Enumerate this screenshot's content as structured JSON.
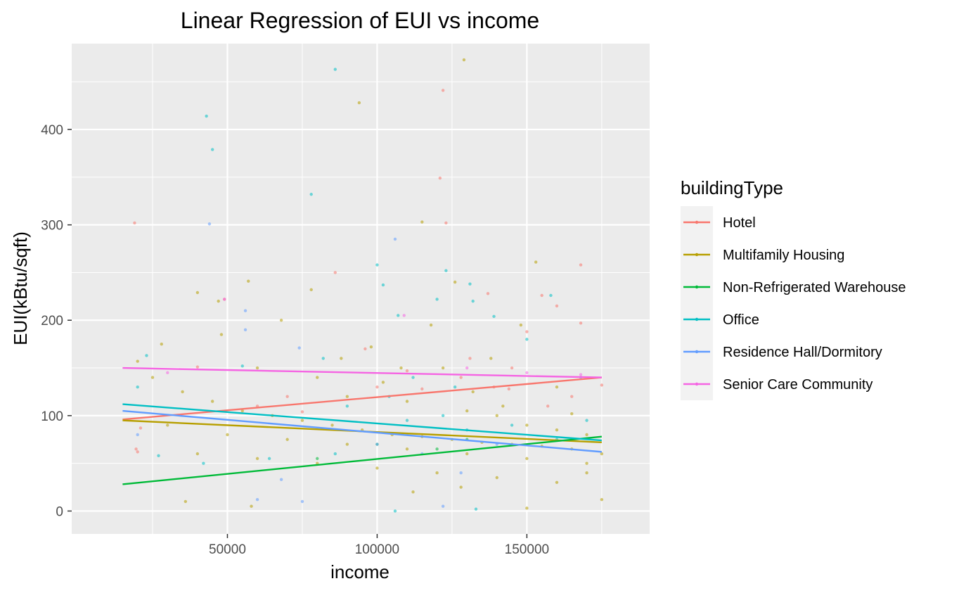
{
  "chart_data": {
    "type": "scatter",
    "title": "Linear Regression of EUI vs income",
    "xlabel": "income",
    "ylabel": "EUI(kBtu/sqft)",
    "xlim": [
      -2000,
      191000
    ],
    "ylim": [
      -24,
      490
    ],
    "x_ticks": [
      50000,
      100000,
      150000
    ],
    "y_ticks": [
      0,
      100,
      200,
      300,
      400
    ],
    "grid": true,
    "legend": {
      "title": "buildingType",
      "position": "right"
    },
    "series": [
      {
        "name": "Hotel",
        "color": "#F8766D",
        "fit": [
          [
            15000,
            96
          ],
          [
            175000,
            140
          ]
        ],
        "points": [
          [
            19000,
            302
          ],
          [
            19500,
            65
          ],
          [
            20000,
            62
          ],
          [
            21000,
            87
          ],
          [
            122000,
            441
          ],
          [
            121000,
            349
          ],
          [
            123000,
            302
          ],
          [
            168000,
            258
          ],
          [
            168000,
            197
          ],
          [
            160000,
            215
          ],
          [
            155000,
            226
          ],
          [
            150000,
            188
          ],
          [
            137000,
            228
          ],
          [
            139000,
            130
          ],
          [
            131000,
            160
          ],
          [
            145000,
            150
          ],
          [
            144000,
            128
          ],
          [
            110000,
            147
          ],
          [
            96000,
            170
          ],
          [
            86000,
            250
          ],
          [
            49000,
            222
          ],
          [
            40000,
            151
          ],
          [
            157000,
            110
          ],
          [
            165000,
            120
          ],
          [
            175000,
            132
          ],
          [
            70000,
            120
          ],
          [
            60000,
            110
          ],
          [
            100000,
            130
          ],
          [
            115000,
            128
          ],
          [
            128000,
            140
          ],
          [
            75000,
            104
          ]
        ]
      },
      {
        "name": "Multifamily Housing",
        "color": "#B79F00",
        "fit": [
          [
            15000,
            95
          ],
          [
            175000,
            72
          ]
        ],
        "points": [
          [
            129000,
            473
          ],
          [
            94000,
            428
          ],
          [
            115000,
            303
          ],
          [
            153000,
            261
          ],
          [
            57000,
            241
          ],
          [
            40000,
            229
          ],
          [
            78000,
            232
          ],
          [
            47000,
            220
          ],
          [
            126000,
            240
          ],
          [
            118000,
            195
          ],
          [
            98000,
            172
          ],
          [
            60000,
            150
          ],
          [
            80000,
            140
          ],
          [
            90000,
            120
          ],
          [
            110000,
            115
          ],
          [
            130000,
            105
          ],
          [
            140000,
            100
          ],
          [
            150000,
            90
          ],
          [
            160000,
            85
          ],
          [
            170000,
            80
          ],
          [
            35000,
            125
          ],
          [
            45000,
            115
          ],
          [
            55000,
            105
          ],
          [
            65000,
            100
          ],
          [
            75000,
            95
          ],
          [
            85000,
            90
          ],
          [
            95000,
            85
          ],
          [
            105000,
            80
          ],
          [
            115000,
            78
          ],
          [
            125000,
            75
          ],
          [
            135000,
            72
          ],
          [
            145000,
            70
          ],
          [
            155000,
            68
          ],
          [
            165000,
            65
          ],
          [
            175000,
            60
          ],
          [
            30000,
            90
          ],
          [
            50000,
            80
          ],
          [
            70000,
            75
          ],
          [
            90000,
            70
          ],
          [
            110000,
            65
          ],
          [
            130000,
            60
          ],
          [
            150000,
            55
          ],
          [
            170000,
            50
          ],
          [
            40000,
            60
          ],
          [
            60000,
            55
          ],
          [
            80000,
            50
          ],
          [
            100000,
            45
          ],
          [
            120000,
            40
          ],
          [
            140000,
            35
          ],
          [
            160000,
            30
          ],
          [
            36000,
            10
          ],
          [
            58000,
            5
          ],
          [
            150000,
            3
          ],
          [
            175000,
            12
          ],
          [
            112000,
            20
          ],
          [
            128000,
            25
          ],
          [
            102000,
            135
          ],
          [
            122000,
            150
          ],
          [
            132000,
            125
          ],
          [
            142000,
            110
          ],
          [
            25000,
            140
          ],
          [
            20000,
            157
          ],
          [
            28000,
            175
          ],
          [
            48000,
            185
          ],
          [
            68000,
            200
          ],
          [
            88000,
            160
          ],
          [
            108000,
            150
          ],
          [
            138000,
            160
          ],
          [
            148000,
            195
          ],
          [
            160000,
            130
          ],
          [
            165000,
            102
          ],
          [
            170000,
            40
          ]
        ]
      },
      {
        "name": "Non-Refrigerated Warehouse",
        "color": "#00BA38",
        "fit": [
          [
            15000,
            28
          ],
          [
            175000,
            78
          ]
        ],
        "points": [
          [
            100000,
            70
          ],
          [
            120000,
            65
          ],
          [
            130000,
            75
          ],
          [
            80000,
            55
          ]
        ]
      },
      {
        "name": "Office",
        "color": "#00BFC4",
        "fit": [
          [
            15000,
            112
          ],
          [
            175000,
            74
          ]
        ],
        "points": [
          [
            86000,
            463
          ],
          [
            43000,
            414
          ],
          [
            45000,
            379
          ],
          [
            78000,
            332
          ],
          [
            123000,
            252
          ],
          [
            100000,
            258
          ],
          [
            102000,
            237
          ],
          [
            131000,
            238
          ],
          [
            158000,
            226
          ],
          [
            150000,
            180
          ],
          [
            132000,
            220
          ],
          [
            139000,
            204
          ],
          [
            107000,
            205
          ],
          [
            120000,
            222
          ],
          [
            55000,
            152
          ],
          [
            82000,
            160
          ],
          [
            90000,
            110
          ],
          [
            110000,
            95
          ],
          [
            130000,
            85
          ],
          [
            145000,
            90
          ],
          [
            160000,
            75
          ],
          [
            170000,
            95
          ],
          [
            20000,
            130
          ],
          [
            23000,
            163
          ],
          [
            27000,
            58
          ],
          [
            42000,
            50
          ],
          [
            64000,
            55
          ],
          [
            106000,
            0
          ],
          [
            133000,
            2
          ],
          [
            86000,
            60
          ],
          [
            122000,
            100
          ],
          [
            126000,
            130
          ],
          [
            112000,
            140
          ],
          [
            104000,
            120
          ]
        ]
      },
      {
        "name": "Residence Hall/Dormitory",
        "color": "#619CFF",
        "fit": [
          [
            15000,
            105
          ],
          [
            175000,
            62
          ]
        ],
        "points": [
          [
            44000,
            301
          ],
          [
            106000,
            285
          ],
          [
            56000,
            210
          ],
          [
            56000,
            190
          ],
          [
            74000,
            171
          ],
          [
            20000,
            80
          ],
          [
            68000,
            33
          ],
          [
            75000,
            10
          ],
          [
            122000,
            5
          ],
          [
            128000,
            40
          ],
          [
            100000,
            70
          ],
          [
            60000,
            12
          ],
          [
            115000,
            60
          ],
          [
            140000,
            70
          ],
          [
            168000,
            140
          ]
        ]
      },
      {
        "name": "Senior Care Community",
        "color": "#F564E3",
        "fit": [
          [
            15000,
            150
          ],
          [
            175000,
            140
          ]
        ],
        "points": [
          [
            49000,
            222
          ],
          [
            109000,
            205
          ],
          [
            130000,
            150
          ],
          [
            150000,
            145
          ],
          [
            30000,
            145
          ],
          [
            168000,
            143
          ]
        ]
      }
    ]
  }
}
